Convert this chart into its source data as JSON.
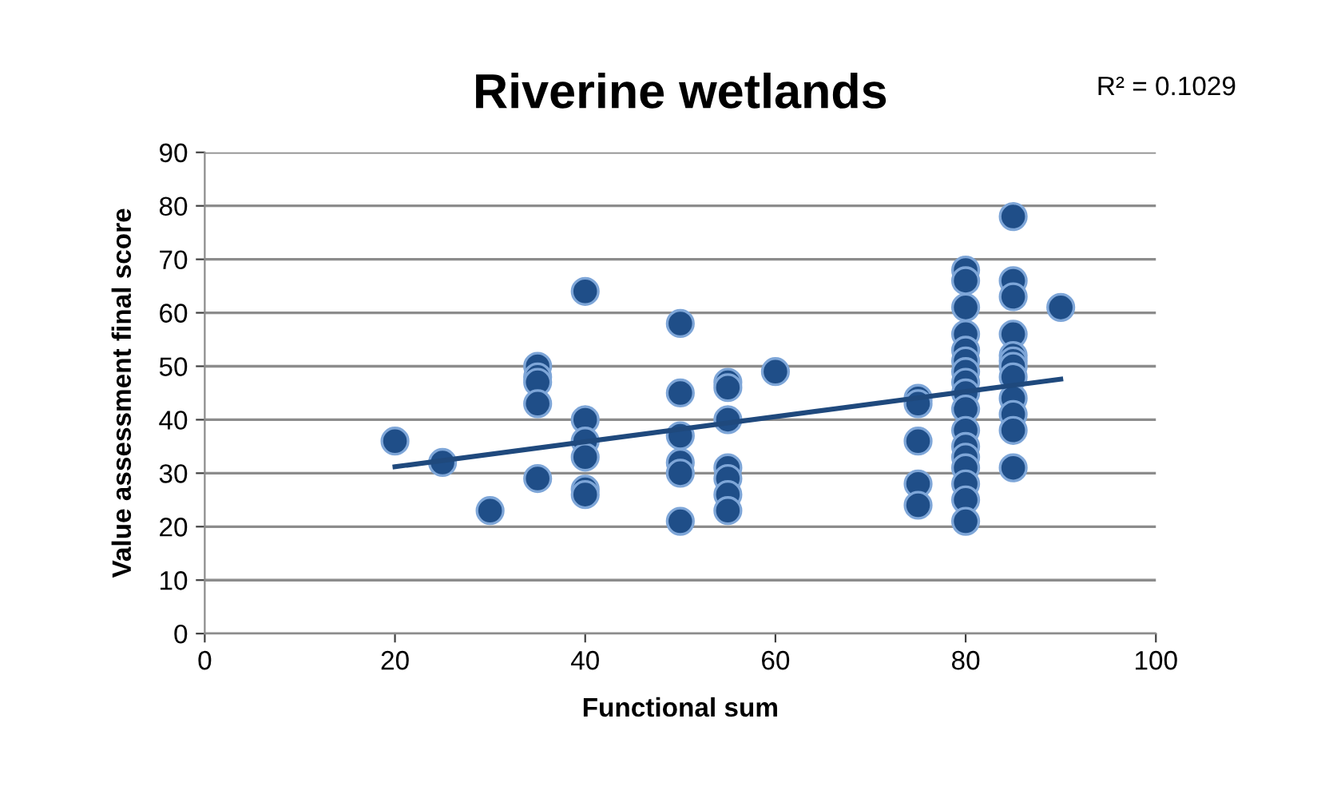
{
  "chart_data": {
    "type": "scatter",
    "title": "Riverine wetlands",
    "xlabel": "Functional sum",
    "ylabel": "Value assessment final score",
    "annotations": [
      "R² = 0.1029"
    ],
    "series": [
      {
        "type": "scatter",
        "color": "#1f4e88",
        "marker": "circle",
        "x": [
          20,
          25,
          30,
          35,
          35,
          35,
          35,
          35,
          40,
          40,
          40,
          40,
          40,
          40,
          50,
          50,
          50,
          50,
          50,
          50,
          55,
          55,
          55,
          55,
          55,
          55,
          55,
          60,
          75,
          75,
          75,
          75,
          75,
          80,
          80,
          80,
          80,
          80,
          80,
          80,
          80,
          80,
          80,
          80,
          80,
          80,
          80,
          80,
          80,
          80,
          85,
          85,
          85,
          85,
          85,
          85,
          85,
          85,
          85,
          85,
          85,
          85,
          90
        ],
        "values": [
          36,
          32,
          23,
          50,
          48,
          47,
          43,
          29,
          64,
          40,
          36,
          33,
          27,
          26,
          58,
          45,
          37,
          32,
          30,
          21,
          47,
          46,
          40,
          31,
          29,
          26,
          23,
          49,
          44,
          43,
          36,
          28,
          24,
          68,
          66,
          61,
          56,
          53,
          51,
          49,
          47,
          45,
          42,
          38,
          35,
          33,
          31,
          28,
          25,
          21,
          78,
          66,
          63,
          56,
          52,
          51,
          50,
          48,
          44,
          41,
          38,
          31,
          61
        ]
      },
      {
        "type": "line",
        "color": "#1f497d",
        "marker": "none",
        "line_style": "solid",
        "x": [
          20,
          90
        ],
        "values": [
          31.2,
          47.6
        ]
      }
    ],
    "xlim": [
      0,
      100
    ],
    "xticks": [
      0,
      20,
      40,
      60,
      80,
      100
    ],
    "ylim": [
      0,
      90
    ],
    "yticks": [
      0,
      10,
      20,
      30,
      40,
      50,
      60,
      70,
      80,
      90
    ],
    "grid": "y",
    "legend": false
  }
}
